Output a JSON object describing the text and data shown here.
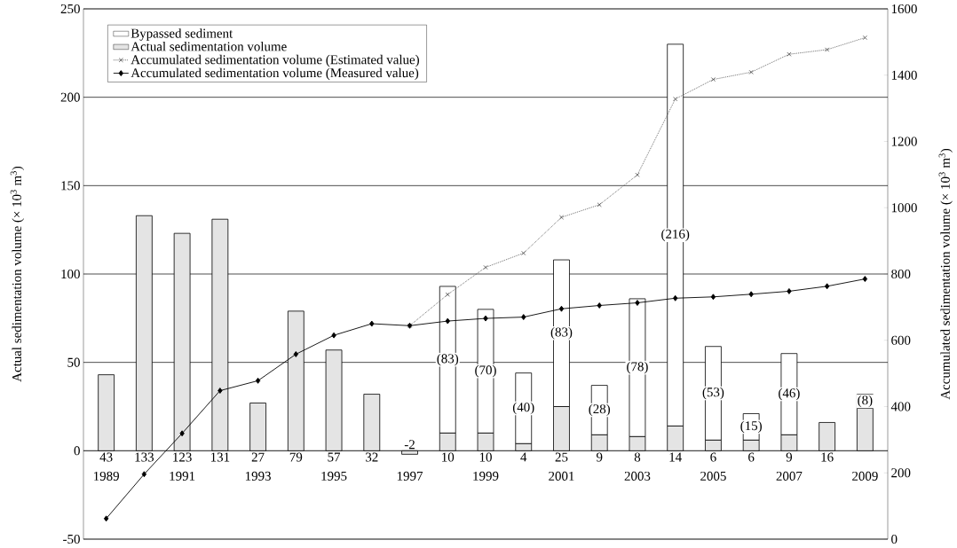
{
  "chart_data": {
    "type": "bar",
    "stacked": true,
    "categories": [
      "1989",
      null,
      "1991",
      null,
      "1993",
      null,
      "1995",
      null,
      "1997",
      null,
      "1999",
      null,
      "2001",
      null,
      "2003",
      null,
      "2005",
      null,
      "2007",
      null,
      "2009"
    ],
    "ylabel": "Actual sedimentation volume (× 10$^{3}$ m$^{3}$)",
    "y2label": "Accumulated sedimentation volume  (× 10$^{3}$ m$^{3}$)",
    "ylim": [
      -50,
      250
    ],
    "yticks": [
      -50,
      0,
      50,
      100,
      150,
      200,
      250
    ],
    "y2lim": [
      0,
      1600
    ],
    "y2ticks": [
      0,
      200,
      400,
      600,
      800,
      1000,
      1200,
      1400,
      1600
    ],
    "grid": "y",
    "legend": "top left",
    "series": [
      {
        "name": "Actual sedimentation volume",
        "type": "bar",
        "color": "#e4e4e4",
        "values": [
          43,
          133,
          123,
          131,
          27,
          79,
          57,
          32,
          -2,
          10,
          10,
          4,
          25,
          9,
          8,
          14,
          6,
          6,
          9,
          16,
          24
        ],
        "value_labels": [
          "43",
          "133",
          "123",
          "131",
          "27",
          "79",
          "57",
          "32",
          "-2",
          "10",
          "10",
          "4",
          "25",
          "9",
          "8",
          "14",
          "6",
          "6",
          "9",
          "16",
          null
        ]
      },
      {
        "name": "Bypassed sediment",
        "type": "bar",
        "color": "#ffffff",
        "values": [
          null,
          null,
          null,
          null,
          null,
          null,
          null,
          null,
          null,
          83,
          70,
          40,
          83,
          28,
          78,
          216,
          53,
          15,
          46,
          null,
          8
        ],
        "value_labels": [
          null,
          null,
          null,
          null,
          null,
          null,
          null,
          null,
          null,
          "(83)",
          "(70)",
          "(40)",
          "(83)",
          "(28)",
          "(78)",
          "(216)",
          "(53)",
          "(15)",
          "(46)",
          null,
          "(8)"
        ]
      },
      {
        "name": "Accumulated sedimentation volume (Estimated value)",
        "type": "line",
        "axis": "y2",
        "color": "#555555",
        "marker": "cross",
        "line_style": "dotted",
        "values": [
          null,
          null,
          null,
          null,
          null,
          null,
          null,
          null,
          644,
          738,
          820,
          863,
          971,
          1009,
          1099,
          1328,
          1387,
          1409,
          1463,
          1477,
          1513
        ]
      },
      {
        "name": "Accumulated sedimentation volume (Measured value)",
        "type": "line",
        "axis": "y2",
        "color": "#000000",
        "marker": "diamond",
        "line_style": "solid",
        "values": [
          62,
          196,
          319,
          448,
          478,
          558,
          615,
          650,
          644,
          658,
          666,
          670,
          695,
          705,
          713,
          727,
          731,
          739,
          748,
          763,
          785
        ]
      }
    ]
  }
}
